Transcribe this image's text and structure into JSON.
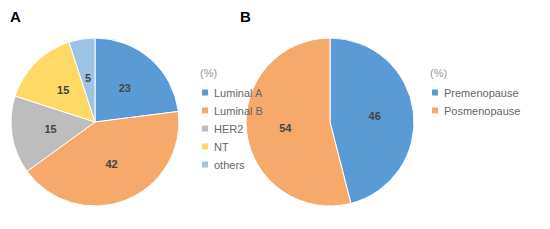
{
  "chart_data": [
    {
      "type": "pie",
      "title": "A",
      "legend_title": "(%)",
      "categories": [
        "Luminal A",
        "Luminal B",
        "HER2",
        "NT",
        "others"
      ],
      "values": [
        23,
        42,
        15,
        15,
        5
      ],
      "colors": [
        "#5B9BD5",
        "#F5A96B",
        "#BDBDBD",
        "#FFD966",
        "#9DC3E6"
      ],
      "data_labels": true,
      "legend": "right"
    },
    {
      "type": "pie",
      "title": "B",
      "legend_title": "(%)",
      "categories": [
        "Premenopause",
        "Posmenopause"
      ],
      "values": [
        46,
        54
      ],
      "colors": [
        "#5B9BD5",
        "#F5A96B"
      ],
      "data_labels": true,
      "legend": "right"
    }
  ]
}
